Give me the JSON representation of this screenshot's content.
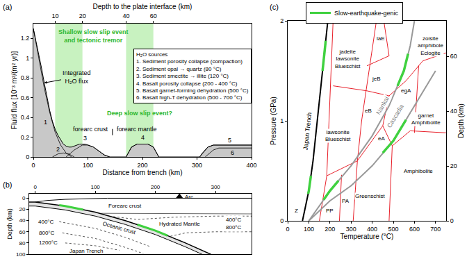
{
  "chart_data": [
    {
      "panel": "(a)",
      "type": "area",
      "xlabel": "Distance from trench (km)",
      "ylabel": "Fluid flux [10⁻³ m³/(m² yr)]",
      "xlim": [
        0,
        400
      ],
      "xticks": [
        0,
        100,
        200,
        300,
        400
      ],
      "ylim": [
        0,
        1.35
      ],
      "yticks": [
        0,
        0.2,
        0.4,
        0.6,
        0.8,
        1,
        1.2
      ],
      "top_axis": {
        "label": "Depth to the plate interface (km)",
        "ticks": [
          {
            "value": 40,
            "label": "10"
          },
          {
            "value": 90,
            "label": "20"
          },
          {
            "value": 170,
            "label": "40"
          },
          {
            "value": 220,
            "label": "60"
          }
        ]
      },
      "bands": [
        {
          "x": [
            40,
            90
          ],
          "label": "Shallow slow slip event and tectonic tremor",
          "label_x": 110,
          "label_y": 1.225
        },
        {
          "x": [
            170,
            220
          ],
          "label": "Deep slow slip event?",
          "label_x": 195,
          "label_y": 0.44
        }
      ],
      "band_color": "#c8f2c0",
      "label_color": "#2fb82f",
      "text_box": {
        "title": "H₂O sources",
        "items": [
          "1. Sediment porosity collapse (compaction)",
          "2. Sediment opal → quartz (80 °C)",
          "3. Sediment smectite → illite (120 °C)",
          "4. Basalt porosity collapse (200 - 400 °C)",
          "5. Basalt garnet-forming dehydration (500 °C)",
          "6. Basalt high-T dehydration (500 - 700 °C)"
        ]
      },
      "series": [
        {
          "name": "Integrated H₂O flux",
          "type": "area",
          "color": "#c8c8c8",
          "label_x": 79,
          "label_y": 0.81,
          "x": [
            0,
            5,
            10,
            15,
            20,
            25,
            30,
            35,
            40,
            45,
            50,
            55,
            60,
            65,
            70,
            75,
            80,
            85,
            90,
            95,
            100,
            105,
            110,
            115,
            120,
            125,
            130,
            135,
            140,
            170,
            175,
            180,
            190,
            200,
            210,
            220,
            225,
            230,
            300,
            305,
            310,
            320,
            330,
            340,
            400
          ],
          "values": [
            1.3,
            1.17,
            1.03,
            0.9,
            0.75,
            0.6,
            0.47,
            0.36,
            0.28,
            0.22,
            0.17,
            0.13,
            0.11,
            0.1,
            0.1,
            0.11,
            0.12,
            0.13,
            0.13,
            0.13,
            0.12,
            0.11,
            0.1,
            0.08,
            0.06,
            0.04,
            0.02,
            0.01,
            0,
            0,
            0.05,
            0.1,
            0.13,
            0.13,
            0.13,
            0.1,
            0.05,
            0,
            0,
            0,
            0.04,
            0.1,
            0.12,
            0.12,
            0.12
          ]
        },
        {
          "name": "1",
          "type": "line",
          "color": "#000000",
          "label_x": 22,
          "label_y": 0.35,
          "x": [
            0,
            10,
            20,
            30,
            40,
            50,
            60,
            70
          ],
          "values": [
            1.3,
            1.0,
            0.7,
            0.45,
            0.25,
            0.12,
            0.04,
            0
          ]
        },
        {
          "name": "2",
          "type": "line",
          "color": "#000000",
          "label_x": 45,
          "label_y": 0.08,
          "x": [
            35,
            45,
            55,
            65,
            75
          ],
          "values": [
            0,
            0.03,
            0.04,
            0.03,
            0
          ]
        },
        {
          "name": "3",
          "type": "line",
          "color": "#000000",
          "label_x": 95,
          "label_y": 0.19,
          "x": [
            60,
            75,
            90,
            100,
            110,
            120,
            130,
            140
          ],
          "values": [
            0,
            0.07,
            0.12,
            0.12,
            0.1,
            0.06,
            0.02,
            0
          ]
        },
        {
          "name": "4",
          "type": "line",
          "color": "#000000",
          "label_x": 200,
          "label_y": 0.2,
          "x": [
            170,
            180,
            190,
            210,
            220,
            230
          ],
          "values": [
            0,
            0.1,
            0.13,
            0.13,
            0.1,
            0
          ]
        },
        {
          "name": "5",
          "type": "line",
          "color": "#000000",
          "label_x": 360,
          "label_y": 0.17,
          "x": [
            305,
            320,
            330,
            400
          ],
          "values": [
            0,
            0.1,
            0.12,
            0.12
          ]
        },
        {
          "name": "6",
          "type": "line",
          "color": "#000000",
          "label_x": 365,
          "label_y": 0.045,
          "x": [
            315,
            330,
            340,
            400
          ],
          "values": [
            0,
            0.07,
            0.09,
            0.09
          ]
        }
      ],
      "divider": {
        "x": 145,
        "y": [
          0.22,
          0.34
        ]
      },
      "annotations": [
        {
          "text": "forearc crust",
          "x": 140,
          "y": 0.28
        },
        {
          "text": "forearc mantle",
          "x": 150,
          "y": 0.28
        }
      ]
    },
    {
      "panel": "(b)",
      "type": "diagram",
      "ylabel": "Depth (km)",
      "xlim": [
        -10,
        360
      ],
      "xticks": [
        0,
        100,
        200,
        300
      ],
      "ylim": [
        100,
        -8
      ],
      "yticks": [
        0,
        20,
        40,
        60,
        80,
        100
      ],
      "surface": {
        "x": [
          0,
          20,
          50,
          120,
          360
        ],
        "y": [
          7,
          4,
          2,
          0,
          0
        ]
      },
      "slab": {
        "x": [
          -10,
          0,
          50,
          100,
          150,
          200,
          250,
          300,
          350
        ],
        "top": [
          7,
          7,
          14,
          25,
          40,
          58,
          80,
          103,
          128
        ],
        "base": [
          14,
          14,
          21,
          32,
          47,
          65,
          87,
          110,
          135
        ],
        "label": {
          "text": "Oceanic crust",
          "x": 140,
          "y": 53
        }
      },
      "moho": {
        "x": [
          110,
          360
        ],
        "y": [
          27,
          28
        ]
      },
      "isotherms": [
        {
          "label": "400°C",
          "x": [
            40,
            100,
            150,
            190
          ],
          "y": [
            42,
            54,
            70,
            86
          ],
          "label_x": 18,
          "label_y": 42
        },
        {
          "label": "800°C",
          "x": [
            45,
            100,
            150,
            180
          ],
          "y": [
            62,
            72,
            88,
            99
          ],
          "label_x": 20,
          "label_y": 62
        },
        {
          "label": "1200°C",
          "x": [
            50,
            100,
            140
          ],
          "y": [
            80,
            85,
            93
          ],
          "label_x": 22,
          "label_y": 80
        },
        {
          "label": "400°C",
          "x": [
            130,
            170,
            230,
            300,
            360
          ],
          "y": [
            33,
            38,
            34,
            32,
            32
          ],
          "label_x": 330,
          "label_y": 39
        },
        {
          "label": "800°C",
          "x": [
            225,
            250,
            300,
            360
          ],
          "y": [
            68,
            62,
            60,
            60
          ],
          "label_x": 330,
          "label_y": 52
        }
      ],
      "slow_segments": [
        {
          "x": [
            40,
            50,
            80
          ],
          "y": [
            12.6,
            14,
            20.6
          ]
        },
        {
          "x": [
            170,
            200,
            220
          ],
          "y": [
            47.2,
            58,
            66.8
          ]
        }
      ],
      "arc": {
        "label": "Arc",
        "x": 240,
        "y": -3
      },
      "annotations": [
        {
          "text": "Forearc crust",
          "x": 150,
          "y": 14
        },
        {
          "text": "Hydrated Mantle",
          "x": 240,
          "y": 46
        },
        {
          "text": "Japan Trench",
          "x": 85,
          "y": 95
        }
      ]
    },
    {
      "panel": "(c)",
      "type": "line",
      "xlabel": "Temperature (°C)",
      "ylabel": "Pressure (GPa)",
      "y2label": "Depth (km)",
      "xlim": [
        0,
        750
      ],
      "xticks": [
        0,
        100,
        200,
        300,
        400,
        500,
        600,
        700
      ],
      "ylim": [
        0,
        2
      ],
      "yticks": [
        0,
        1,
        2
      ],
      "y2lim": [
        0,
        73
      ],
      "y2ticks": [
        0,
        20,
        40,
        60
      ],
      "legend": "top",
      "slow_legend": {
        "name": "Slow-earthquake-genic",
        "color": "#3fd13f"
      },
      "series": [
        {
          "name": "Japan Trench",
          "color": "#000000",
          "x": [
            70,
            100,
            120,
            140,
            160,
            175,
            190
          ],
          "values": [
            0,
            0.3,
            0.6,
            1.0,
            1.4,
            1.7,
            2.0
          ],
          "label_x": 95,
          "label_y": 0.9,
          "slow_segments": [
            {
              "x": [
                97,
                100,
                110
              ],
              "values": [
                0.27,
                0.3,
                0.45
              ]
            },
            {
              "x": [
                165,
                175,
                180
              ],
              "values": [
                1.5,
                1.7,
                1.8
              ]
            }
          ]
        },
        {
          "name": "Nankai",
          "color": "#999999",
          "x": [
            100,
            200,
            300,
            400,
            480,
            550,
            580,
            600
          ],
          "values": [
            0,
            0.3,
            0.55,
            0.85,
            1.15,
            1.5,
            1.75,
            2.0
          ],
          "label_x": 450,
          "label_y": 1.15,
          "slow_segments": [
            {
              "x": [
                170,
                200,
                240
              ],
              "values": [
                0.21,
                0.3,
                0.4
              ]
            },
            {
              "x": [
                520,
                550,
                570
              ],
              "values": [
                1.35,
                1.5,
                1.67
              ]
            }
          ]
        },
        {
          "name": "Cascadia",
          "color": "#999999",
          "x": [
            100,
            200,
            300,
            400,
            500,
            600,
            700
          ],
          "values": [
            0,
            0.2,
            0.35,
            0.55,
            0.8,
            1.15,
            1.5
          ],
          "label_x": 510,
          "label_y": 1.05,
          "slow_segments": [
            {
              "x": [
                450,
                500,
                560
              ],
              "values": [
                0.68,
                0.8,
                1.01
              ]
            }
          ]
        }
      ],
      "boundaries": {
        "color": "#e8202a",
        "lines": [
          {
            "x": [
              150,
              185,
              215
            ],
            "y": [
              0,
              0.45,
              2.0
            ]
          },
          {
            "x": [
              185,
              330
            ],
            "y": [
              0.45,
              0.6
            ]
          },
          {
            "x": [
              245,
              255
            ],
            "y": [
              0,
              0.46
            ]
          },
          {
            "x": [
              310,
              330
            ],
            "y": [
              0,
              0.6
            ]
          },
          {
            "x": [
              330,
              450
            ],
            "y": [
              0.6,
              0.95
            ]
          },
          {
            "x": [
              480,
              495,
              450
            ],
            "y": [
              0,
              0.75,
              0.95
            ]
          },
          {
            "x": [
              330,
              350,
              420
            ],
            "y": [
              0.6,
              1.0,
              2.0
            ]
          },
          {
            "x": [
              215,
              375,
              480
            ],
            "y": [
              1.35,
              1.3,
              1.25
            ]
          },
          {
            "x": [
              450,
              480,
              560,
              640,
              750
            ],
            "y": [
              0.95,
              1.25,
              1.4,
              1.6,
              1.68
            ]
          },
          {
            "x": [
              495,
              580,
              750
            ],
            "y": [
              0.75,
              0.9,
              0.88
            ]
          },
          {
            "x": [
              600,
              620
            ],
            "y": [
              0.88,
              1.55
            ]
          },
          {
            "x": [
              375,
              480,
              455
            ],
            "y": [
              1.55,
              1.65,
              2.0
            ]
          }
        ]
      },
      "labels": [
        {
          "text": "Z",
          "x": 40,
          "y": 0.1
        },
        {
          "text": "PP",
          "x": 200,
          "y": 0.1
        },
        {
          "text": "PA",
          "x": 275,
          "y": 0.2
        },
        {
          "text": "Greenschist",
          "x": 390,
          "y": 0.25
        },
        {
          "text": "lawsonite Blueschist",
          "x": 240,
          "y": 0.85
        },
        {
          "text": "eA",
          "x": 445,
          "y": 0.82
        },
        {
          "text": "Amphibolite",
          "x": 620,
          "y": 0.5
        },
        {
          "text": "garnet Amphibolite",
          "x": 655,
          "y": 1.02
        },
        {
          "text": "eB",
          "x": 380,
          "y": 1.1
        },
        {
          "text": "egA",
          "x": 560,
          "y": 1.3
        },
        {
          "text": "jeB",
          "x": 420,
          "y": 1.42
        },
        {
          "text": "jadeite lawsonite Blueschist",
          "x": 285,
          "y": 1.62
        },
        {
          "text": "laE",
          "x": 440,
          "y": 1.82
        },
        {
          "text": "zoisite amphibole Eclogite",
          "x": 675,
          "y": 1.75
        }
      ]
    }
  ]
}
